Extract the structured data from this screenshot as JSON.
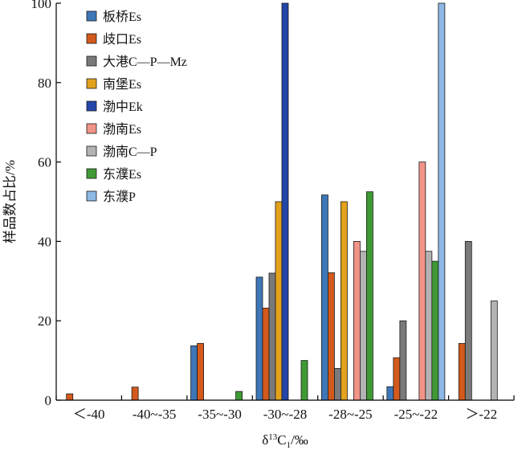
{
  "chart_data": {
    "type": "bar",
    "xlabel": "δ13C1/‰",
    "ylabel": "样品数占比/%",
    "ylim": [
      0,
      100
    ],
    "yticks": [
      0,
      20,
      40,
      60,
      80,
      100
    ],
    "grid": false,
    "legend_position": "top-left",
    "categories": [
      "＜-40",
      "-40~-35",
      "-35~-30",
      "-30~-28",
      "-28~-25",
      "-25~-22",
      "＞-22"
    ],
    "series": [
      {
        "name": "板桥Es",
        "color": "#3e77b8",
        "values": [
          0,
          0,
          13.7,
          31,
          51.7,
          3.4,
          0
        ]
      },
      {
        "name": "歧口Es",
        "color": "#d35a1c",
        "values": [
          1.6,
          3.3,
          14.3,
          23.2,
          32.1,
          10.7,
          14.3
        ]
      },
      {
        "name": "大港C—P—Mz",
        "color": "#7a7a7a",
        "values": [
          0,
          0,
          0,
          32,
          8,
          20,
          40
        ]
      },
      {
        "name": "南堡Es",
        "color": "#e2a21c",
        "values": [
          0,
          0,
          0,
          50,
          50,
          0,
          0
        ]
      },
      {
        "name": "渤中Ek",
        "color": "#2346a8",
        "values": [
          0,
          0,
          0,
          100,
          0,
          0,
          0
        ]
      },
      {
        "name": "渤南Es",
        "color": "#f19488",
        "values": [
          0,
          0,
          0,
          0,
          40,
          60,
          0
        ]
      },
      {
        "name": "渤南C—P",
        "color": "#b3b3b3",
        "values": [
          0,
          0,
          0,
          0,
          37.5,
          37.5,
          25
        ]
      },
      {
        "name": "东濮Es",
        "color": "#3f9a34",
        "values": [
          0,
          0,
          2.2,
          10,
          52.5,
          35,
          0
        ]
      },
      {
        "name": "东濮P",
        "color": "#8eb8e5",
        "values": [
          0,
          0,
          0,
          0,
          0,
          100,
          0
        ]
      }
    ]
  }
}
